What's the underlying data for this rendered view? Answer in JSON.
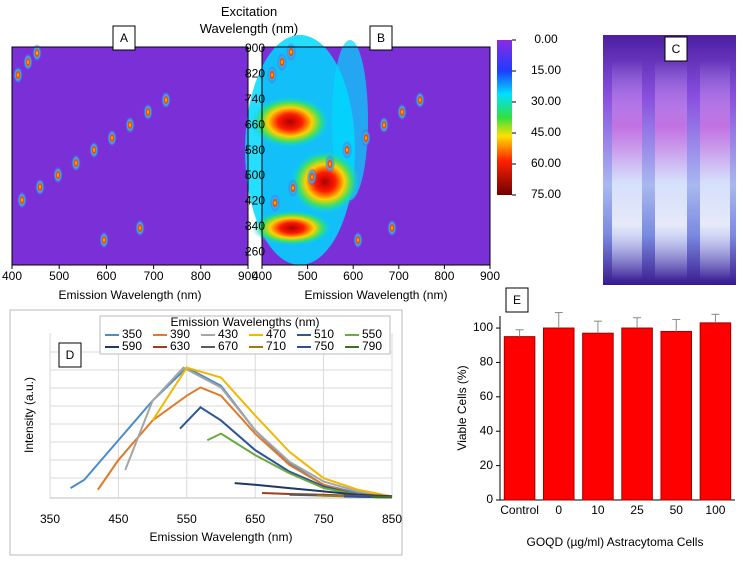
{
  "chart_data": [
    {
      "type": "heatmap",
      "panel": "A",
      "xlabel": "Emission Wavelength (nm)",
      "ylabel": "Excitation Wavelength (nm)",
      "xlim": [
        400,
        900
      ],
      "xticks": [
        400,
        500,
        600,
        700,
        800,
        900
      ],
      "ylim": [
        220,
        900
      ],
      "yticks": [
        260,
        340,
        420,
        500,
        580,
        660,
        740,
        820,
        900
      ]
    },
    {
      "type": "heatmap",
      "panel": "B",
      "xlabel": "Emission Wavelength (nm)",
      "xlim": [
        400,
        900
      ],
      "xticks": [
        400,
        500,
        600,
        700,
        800,
        900
      ],
      "colorbar": {
        "lim": [
          0,
          75
        ],
        "ticks": [
          {
            "value": 0,
            "label": "0.00"
          },
          {
            "value": 15,
            "label": "15.00"
          },
          {
            "value": 30,
            "label": "30.00"
          },
          {
            "value": 45,
            "label": "45.00"
          },
          {
            "value": 60,
            "label": "60.00"
          },
          {
            "value": 75,
            "label": "75.00"
          }
        ]
      }
    },
    {
      "type": "image",
      "panel": "C"
    },
    {
      "type": "line",
      "panel": "D",
      "xlabel": "Emission Wavelength (nm)",
      "ylabel": "Intensity (a.u.)",
      "legend_title": "Emission Wavelengths (nm)",
      "xlim": [
        350,
        850
      ],
      "xticks": [
        350,
        450,
        550,
        650,
        750,
        850
      ],
      "ylim": [
        0,
        100
      ],
      "grid": true,
      "series": [
        {
          "name": "350",
          "color": "#4a8cc8",
          "x": [
            380,
            400,
            450,
            500,
            550,
            600,
            650,
            700,
            750,
            800,
            850
          ],
          "values": [
            6,
            11,
            35,
            59,
            79,
            68,
            41,
            21,
            8,
            3,
            1
          ]
        },
        {
          "name": "390",
          "color": "#e07a2b",
          "x": [
            420,
            450,
            500,
            550,
            570,
            600,
            650,
            700,
            750,
            800,
            850
          ],
          "values": [
            5,
            23,
            47,
            62,
            67,
            62,
            39,
            20,
            8,
            2,
            1
          ]
        },
        {
          "name": "430",
          "color": "#a5a5a5",
          "x": [
            460,
            500,
            545,
            600,
            650,
            700,
            750,
            800,
            850
          ],
          "values": [
            17,
            59,
            79,
            67,
            41,
            22,
            10,
            4,
            1
          ]
        },
        {
          "name": "470",
          "color": "#f2b800",
          "x": [
            500,
            550,
            600,
            650,
            700,
            750,
            800,
            850
          ],
          "values": [
            47,
            79,
            73,
            50,
            28,
            12,
            5,
            1
          ]
        },
        {
          "name": "510",
          "color": "#2e5597",
          "x": [
            540,
            570,
            600,
            650,
            700,
            750,
            800,
            850
          ],
          "values": [
            42,
            55,
            47,
            29,
            16,
            7,
            2,
            1
          ]
        },
        {
          "name": "550",
          "color": "#6aaa3e",
          "x": [
            580,
            600,
            650,
            700,
            750,
            800,
            850
          ],
          "values": [
            35,
            39,
            26,
            15,
            6,
            2,
            1
          ]
        },
        {
          "name": "590",
          "color": "#1f3864",
          "x": [
            620,
            650,
            700,
            750,
            800,
            850
          ],
          "values": [
            9,
            8,
            6,
            4,
            2,
            1
          ]
        },
        {
          "name": "630",
          "color": "#9c3d1e",
          "x": [
            660,
            700,
            750,
            800,
            850
          ],
          "values": [
            3,
            2.4,
            2,
            1.2,
            0.6
          ]
        },
        {
          "name": "670",
          "color": "#5a5a5a",
          "x": [
            700,
            750,
            800,
            850
          ],
          "values": [
            2,
            1.5,
            1,
            0.5
          ]
        },
        {
          "name": "710",
          "color": "#9c7a12",
          "x": [
            740,
            800,
            850
          ],
          "values": [
            1.5,
            0.8,
            0.3
          ]
        },
        {
          "name": "750",
          "color": "#2f4f8f",
          "x": [
            780,
            850
          ],
          "values": [
            1,
            0.3
          ]
        },
        {
          "name": "790",
          "color": "#3f6e2a",
          "x": [
            820,
            850
          ],
          "values": [
            0.6,
            0.3
          ]
        }
      ]
    },
    {
      "type": "bar",
      "panel": "E",
      "xlabel": "GOQD (µg/ml) Astracytoma Cells",
      "ylabel": "Viable Cells (%)",
      "categories": [
        "Control",
        "0",
        "10",
        "25",
        "50",
        "100"
      ],
      "values": [
        95,
        100,
        97,
        100,
        98,
        103
      ],
      "errors": [
        4,
        9,
        7,
        6,
        7,
        5
      ],
      "color": "#ff0000",
      "ylim": [
        0,
        107
      ],
      "yticks": [
        0,
        20,
        40,
        60,
        80,
        100
      ]
    }
  ]
}
